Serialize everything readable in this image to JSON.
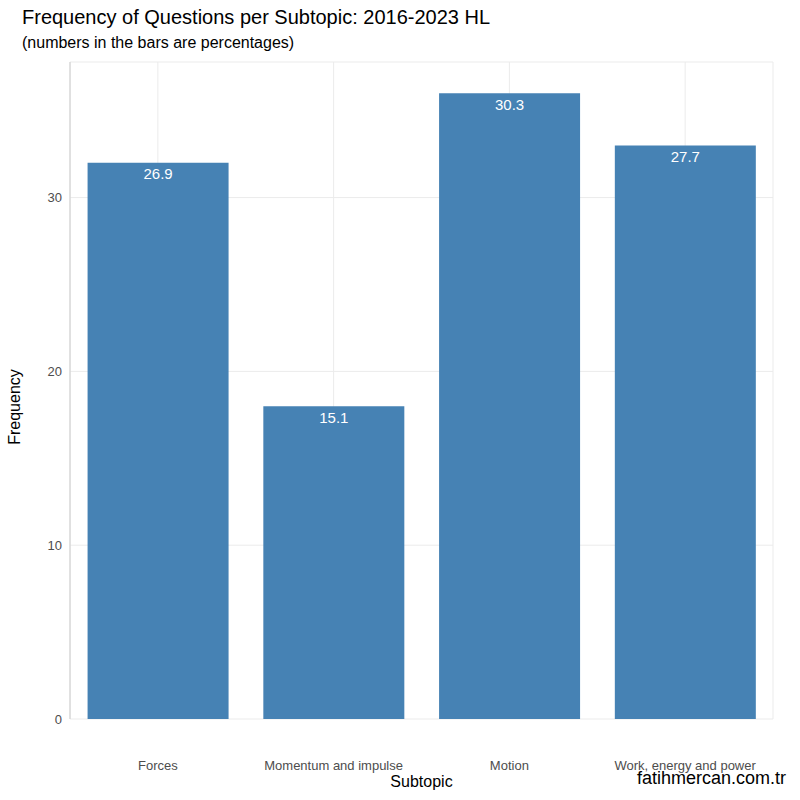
{
  "chart_data": {
    "type": "bar",
    "title": "Frequency of Questions per Subtopic: 2016-2023 HL",
    "subtitle": "(numbers in the bars are percentages)",
    "x_label": "Subtopic",
    "y_label": "Frequency",
    "caption": "fatihmercan.com.tr",
    "categories": [
      "Forces",
      "Momentum and impulse",
      "Motion",
      "Work, energy and power"
    ],
    "values": [
      32,
      18,
      36,
      33
    ],
    "percentages": [
      26.9,
      15.1,
      30.3,
      27.7
    ],
    "color": "#4682b4",
    "ylim": [
      0,
      37.8
    ],
    "yticks": [
      0,
      10,
      20,
      30
    ],
    "grid": true
  }
}
